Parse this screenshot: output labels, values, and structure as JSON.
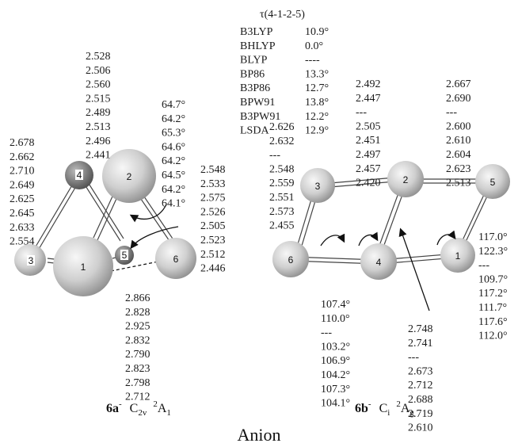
{
  "title": "Anion",
  "tau_header": "τ(4-1-2-5)",
  "tau_table": [
    {
      "method": "B3LYP",
      "value": "10.9°"
    },
    {
      "method": "BHLYP",
      "value": "0.0°"
    },
    {
      "method": "BLYP",
      "value": "----"
    },
    {
      "method": "BP86",
      "value": "13.3°"
    },
    {
      "method": "B3P86",
      "value": "12.7°"
    },
    {
      "method": "BPW91",
      "value": "13.8°"
    },
    {
      "method": "B3PW91",
      "value": "12.2°"
    },
    {
      "method": "LSDA",
      "value": "12.9°"
    }
  ],
  "mol_a": {
    "caption": {
      "label": "6a",
      "charge": "-",
      "symmetry": "C",
      "sym_sub": "2v",
      "state_pre": "2",
      "state": "A",
      "state_sub": "1"
    },
    "atoms": [
      "1",
      "2",
      "3",
      "4",
      "5",
      "6"
    ],
    "col_bond_2_4": [
      "2.528",
      "2.506",
      "2.560",
      "2.515",
      "2.489",
      "2.513",
      "2.496",
      "2.441"
    ],
    "col_bond_3_4": [
      "2.678",
      "2.662",
      "2.710",
      "2.649",
      "2.625",
      "2.645",
      "2.633",
      "2.554"
    ],
    "col_angle": [
      "64.7°",
      "64.2°",
      "65.3°",
      "64.6°",
      "64.2°",
      "64.5°",
      "64.2°",
      "64.1°"
    ],
    "col_bond_2_6": [
      "2.548",
      "2.533",
      "2.575",
      "2.526",
      "2.505",
      "2.523",
      "2.512",
      "2.446"
    ],
    "col_bond_1_6": [
      "2.866",
      "2.828",
      "2.925",
      "2.832",
      "2.790",
      "2.823",
      "2.798",
      "2.712"
    ]
  },
  "mol_b": {
    "caption": {
      "label": "6b",
      "charge": "-",
      "symmetry": "C",
      "sym_sub": "i",
      "state_pre": "2",
      "state": "A",
      "state_sub": "g"
    },
    "atoms": [
      "1",
      "2",
      "3",
      "4",
      "5",
      "6"
    ],
    "col_bond_3_6": [
      "2.626",
      "2.632",
      "---",
      "2.548",
      "2.559",
      "2.551",
      "2.573",
      "2.455"
    ],
    "col_bond_2_3": [
      "2.492",
      "2.447",
      "---",
      "2.505",
      "2.451",
      "2.497",
      "2.457",
      "2.420"
    ],
    "col_bond_2_5": [
      "2.667",
      "2.690",
      "---",
      "2.600",
      "2.610",
      "2.604",
      "2.623",
      "2.513"
    ],
    "col_angle_6": [
      "107.4°",
      "110.0°",
      "---",
      "103.2°",
      "106.9°",
      "104.2°",
      "107.3°",
      "104.1°"
    ],
    "col_bond_2_4": [
      "2.748",
      "2.741",
      "---",
      "2.673",
      "2.712",
      "2.688",
      "2.719",
      "2.610"
    ],
    "col_angle_1": [
      "117.0°",
      "122.3°",
      "---",
      "109.7°",
      "117.2°",
      "111.7°",
      "117.6°",
      "112.0°"
    ]
  }
}
